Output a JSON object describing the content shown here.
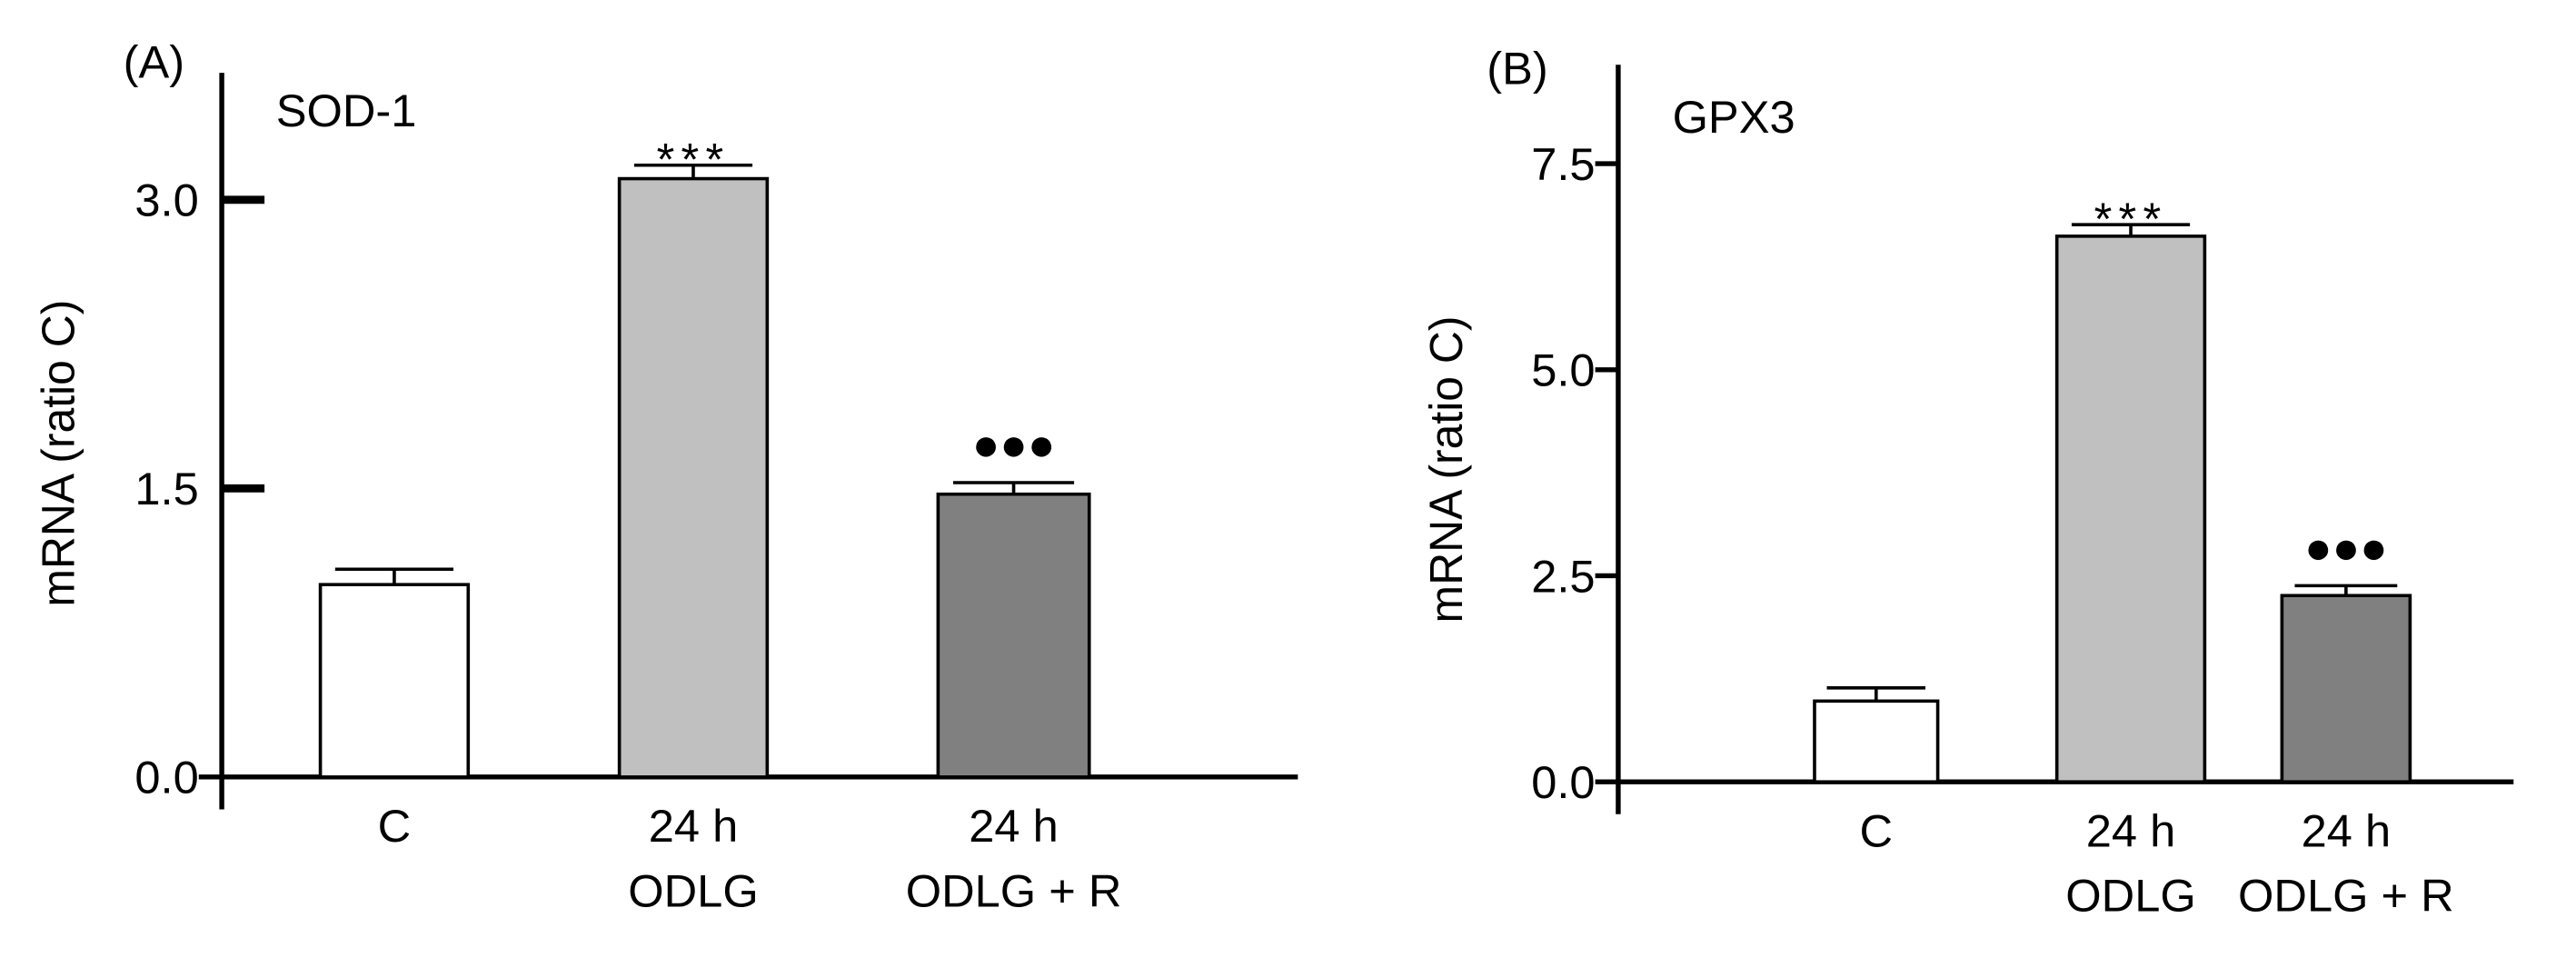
{
  "chart_data": [
    {
      "type": "bar",
      "panel": "(A)",
      "title": "SOD-1",
      "y_label": "mRNA (ratio C)",
      "categories": [
        [
          "C"
        ],
        [
          "24 h",
          "ODLG"
        ],
        [
          "24 h",
          "ODLG + R"
        ]
      ],
      "values": [
        1.0,
        3.11,
        1.47
      ],
      "errors": [
        0.08,
        0.07,
        0.06
      ],
      "annotations": [
        null,
        "***",
        "●●●"
      ],
      "colors": [
        "#ffffff",
        "#c0c0c0",
        "#808080"
      ],
      "ylim": [
        0,
        3.66
      ],
      "yticks": [
        {
          "value": 0,
          "label": "0.0"
        },
        1.5,
        {
          "value": 3,
          "label": "3.0"
        }
      ]
    },
    {
      "type": "bar",
      "panel": "(B)",
      "title": "GPX3",
      "y_label": "mRNA (ratio C)",
      "categories": [
        [
          "C"
        ],
        [
          "24 h",
          "ODLG"
        ],
        [
          "24 h",
          "ODLG + R"
        ]
      ],
      "values": [
        0.98,
        6.62,
        2.26
      ],
      "errors": [
        0.16,
        0.14,
        0.12
      ],
      "annotations": [
        null,
        "***",
        "●●●"
      ],
      "colors": [
        "#ffffff",
        "#c0c0c0",
        "#808080"
      ],
      "ylim": [
        0,
        8.7
      ],
      "yticks": [
        {
          "value": 0,
          "label": "0.0"
        },
        2.5,
        {
          "value": 5,
          "label": "5.0"
        },
        7.5
      ]
    }
  ]
}
